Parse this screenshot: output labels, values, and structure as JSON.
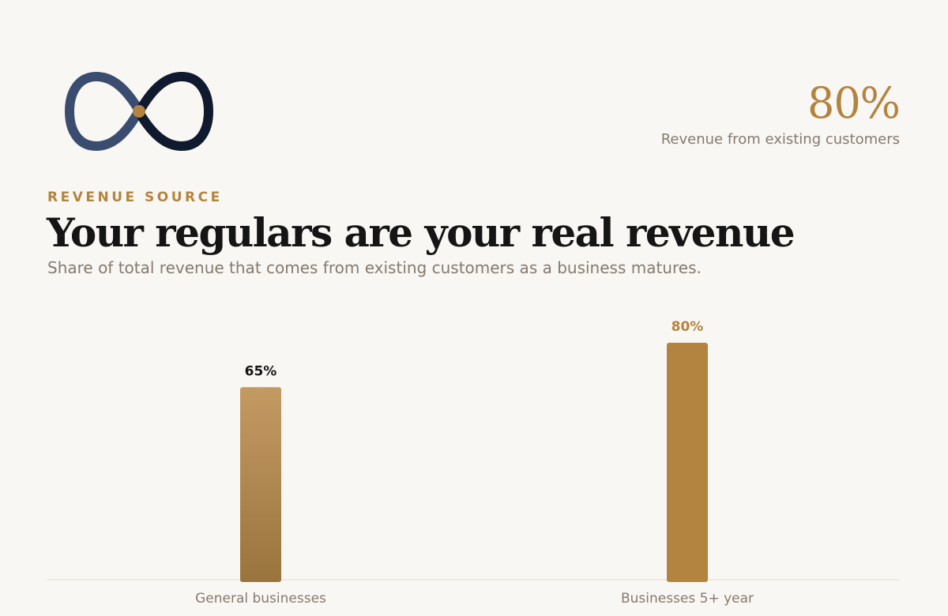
{
  "header": {
    "stat_value": "80%",
    "stat_label": "Revenue from existing customers",
    "eyebrow": "REVENUE SOURCE",
    "title": "Your regulars are your real revenue",
    "subtitle": "Share of total revenue that comes from existing customers as a business matures."
  },
  "logo": {
    "icon": "infinity-icon",
    "colors": [
      "#3a4d70",
      "#0f1a2e",
      "#b3843f"
    ]
  },
  "colors": {
    "accent": "#b3843f",
    "bar_gradient_top": "#c49a63",
    "bar_gradient_bottom": "#9a743d",
    "bar_solid": "#b3843f",
    "muted_text": "#857a6f"
  },
  "chart_data": {
    "type": "bar",
    "categories": [
      "General businesses",
      "Businesses 5+ year"
    ],
    "values": [
      65,
      80
    ],
    "value_labels": [
      "65%",
      "80%"
    ],
    "label_colors": [
      "#151515",
      "#b3843f"
    ],
    "ylim": [
      0,
      100
    ],
    "grid": false,
    "xlabel": "",
    "ylabel": ""
  }
}
